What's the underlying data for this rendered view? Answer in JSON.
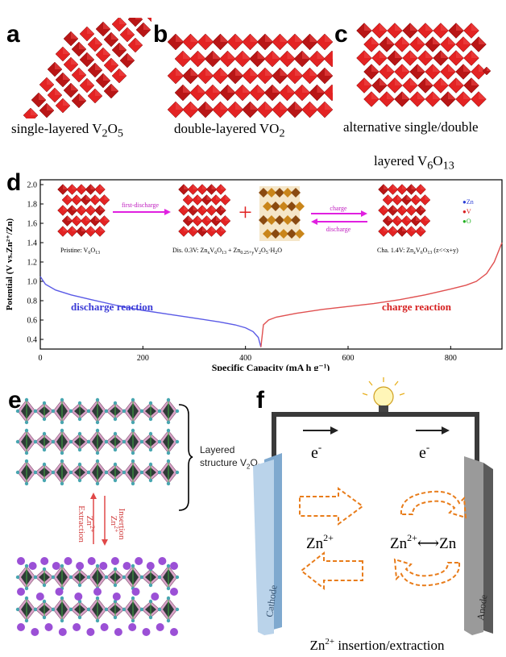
{
  "panels": {
    "a": {
      "label": "a",
      "caption_pre": "single-layered V",
      "sub1": "2",
      "mid": "O",
      "sub2": "5"
    },
    "b": {
      "label": "b",
      "caption_pre": "double-layered VO",
      "sub1": "2"
    },
    "c": {
      "label": "c",
      "caption_line1": "alternative single/double",
      "caption_pre": "layered V",
      "sub1": "6",
      "mid": "O",
      "sub2": "13"
    },
    "d": {
      "label": "d"
    },
    "e": {
      "label": "e",
      "layered_line1": "Layered",
      "layered_line2": "structure V",
      "layered_sub1": "2",
      "layered_mid": "O",
      "layered_sub2": "5",
      "extraction": "Extraction",
      "insertion": "Insertion",
      "zn": "Zn",
      "zn_sup": "2+"
    },
    "f": {
      "label": "f",
      "electron": "e",
      "electron_sup": "-",
      "zn_ion": "Zn",
      "zn_sup": "2+",
      "arrow": "⟷",
      "zn_metal": "Zn",
      "cathode": "Cathode",
      "anode": "Anode",
      "caption_pre": "Zn",
      "caption_sup": "2+",
      "caption_post": " insertion/extraction"
    }
  },
  "inset": {
    "pristine": "Pristine: V",
    "pristine_sub1": "6",
    "pristine_mid": "O",
    "pristine_sub2": "13",
    "first_discharge": "first-discharge",
    "dis_label": "Dis. 0.3V: Zn",
    "dis_sub_x": "x",
    "dis_v": "V",
    "dis_sub6": "6",
    "dis_o": "O",
    "dis_sub13": "13",
    "dis_plus": " + Zn",
    "dis_sub_025": "0.25+y",
    "dis_v2": "V",
    "dis_sub2": "2",
    "dis_o2": "O",
    "dis_sub5": "5",
    "dis_h2o": "·H",
    "dis_sub_h": "2",
    "dis_o3": "O",
    "charge": "charge",
    "discharge": "discharge",
    "cha_label": "Cha. 1.4V: Zn",
    "cha_sub_z": "z",
    "cha_v": "V",
    "cha_sub6": "6",
    "cha_o": "O",
    "cha_sub13": "13",
    "cha_cond": " (z<<x+y)",
    "legend": [
      {
        "symbol": "●",
        "name": "Zn",
        "color": "#2b3fd6"
      },
      {
        "symbol": "●",
        "name": "V",
        "color": "#d92020"
      },
      {
        "symbol": "●",
        "name": "O",
        "color": "#22b022"
      }
    ]
  },
  "chart_data": {
    "type": "line",
    "xlabel": "Specific Capacity (mA h g⁻¹)",
    "ylabel": "Potential (V vs.Zn²⁺/Zn)",
    "xlim": [
      0,
      900
    ],
    "ylim": [
      0.3,
      2.05
    ],
    "xticks": [
      0,
      200,
      400,
      600,
      800
    ],
    "yticks": [
      0.4,
      0.6,
      0.8,
      1.0,
      1.2,
      1.4,
      1.6,
      1.8,
      2.0
    ],
    "grid": false,
    "annotations": [
      "discharge reaction",
      "charge reaction"
    ],
    "series": [
      {
        "name": "discharge reaction",
        "color": "#5a5ae6",
        "x": [
          0,
          10,
          30,
          60,
          100,
          150,
          200,
          250,
          300,
          350,
          380,
          400,
          415,
          425,
          430
        ],
        "y": [
          1.05,
          0.97,
          0.91,
          0.86,
          0.81,
          0.75,
          0.7,
          0.66,
          0.62,
          0.58,
          0.55,
          0.52,
          0.48,
          0.42,
          0.32
        ]
      },
      {
        "name": "charge reaction",
        "color": "#e05050",
        "x": [
          430,
          435,
          445,
          460,
          500,
          550,
          600,
          650,
          700,
          750,
          800,
          830,
          850,
          870,
          885,
          900
        ],
        "y": [
          0.32,
          0.55,
          0.6,
          0.63,
          0.67,
          0.71,
          0.74,
          0.77,
          0.81,
          0.86,
          0.92,
          0.96,
          1.0,
          1.08,
          1.2,
          1.4
        ]
      }
    ]
  }
}
